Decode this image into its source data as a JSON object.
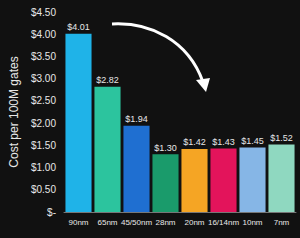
{
  "chart_data": {
    "type": "bar",
    "ylabel": "Cost per 100M gates",
    "categories": [
      "90nm",
      "65nm",
      "45/50nm",
      "28nm",
      "20nm",
      "16/14nm",
      "10nm",
      "7nm"
    ],
    "values": [
      4.01,
      2.82,
      1.94,
      1.3,
      1.42,
      1.43,
      1.45,
      1.52
    ],
    "value_labels": [
      "$4.01",
      "$2.82",
      "$1.94",
      "$1.30",
      "$1.42",
      "$1.43",
      "$1.45",
      "$1.52"
    ],
    "colors": [
      "#1fb3e8",
      "#2cc49e",
      "#1f6fd1",
      "#1a9b6b",
      "#f5a524",
      "#e3145b",
      "#86b6e6",
      "#8fd8c0"
    ],
    "ylim": [
      0,
      4.5
    ],
    "yticks": [
      {
        "value": 0,
        "label": "$-"
      },
      {
        "value": 0.5,
        "label": "$0.50"
      },
      {
        "value": 1,
        "label": "$1.00"
      },
      {
        "value": 1.5,
        "label": "$1.50"
      },
      {
        "value": 2,
        "label": "$2.00"
      },
      {
        "value": 2.5,
        "label": "$2.50"
      },
      {
        "value": 3,
        "label": "$3.00"
      },
      {
        "value": 3.5,
        "label": "$3.50"
      },
      {
        "value": 4,
        "label": "$4.00"
      },
      {
        "value": 4.5,
        "label": "$4.50"
      }
    ],
    "grid": false,
    "data_labels": true
  }
}
